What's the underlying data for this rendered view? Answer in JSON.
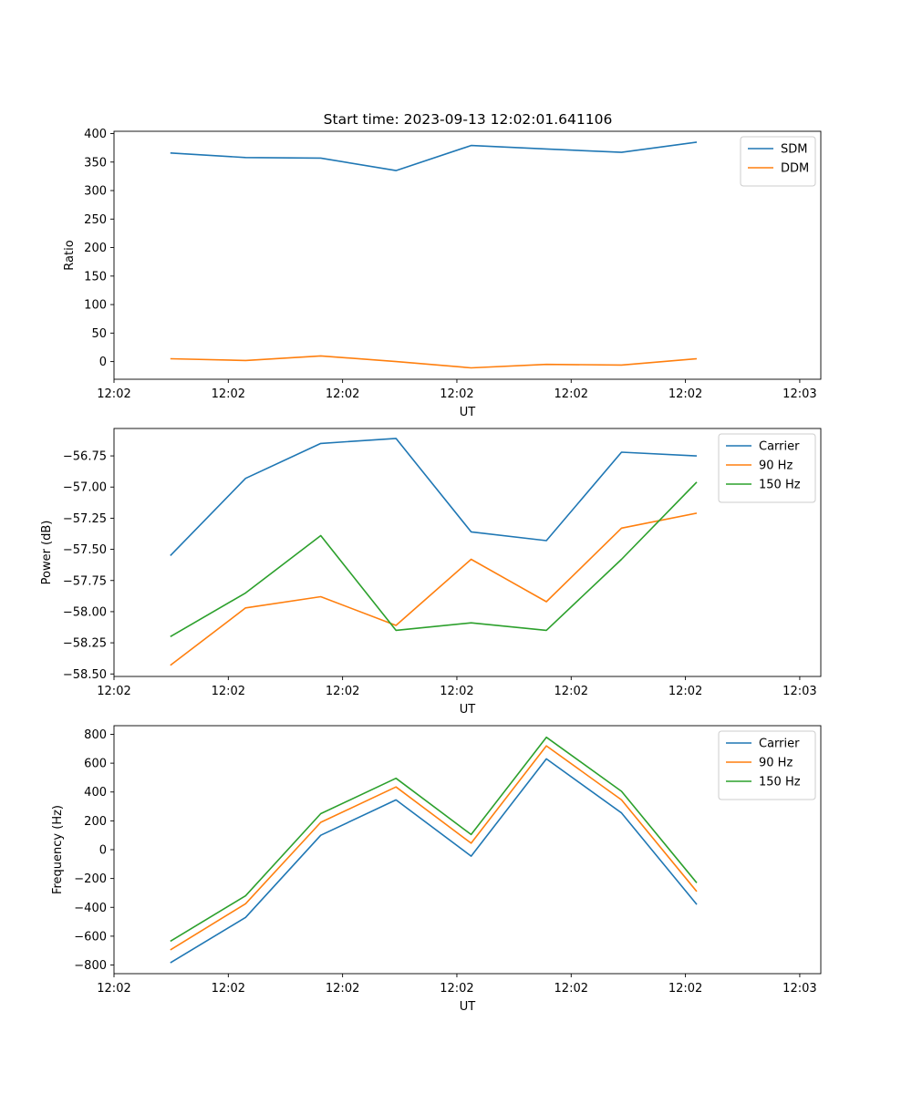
{
  "figure_title": "Start time: 2023-09-13 12:02:01.641106",
  "chart_data": [
    {
      "type": "line",
      "title": "Start time: 2023-09-13 12:02:01.641106",
      "xlabel": "UT",
      "ylabel": "Ratio",
      "x_index": [
        0,
        1,
        2,
        3,
        4,
        5,
        6,
        7
      ],
      "xlim": [
        -0.75,
        8.65
      ],
      "xticks": [
        -0.75,
        0.77,
        2.29,
        3.81,
        5.33,
        6.85,
        8.37
      ],
      "xtick_labels": [
        "12:02",
        "12:02",
        "12:02",
        "12:02",
        "12:02",
        "12:02",
        "12:03"
      ],
      "ylim": [
        -31,
        404
      ],
      "yticks": [
        0,
        50,
        100,
        150,
        200,
        250,
        300,
        350,
        400
      ],
      "ytick_labels": [
        "0",
        "50",
        "100",
        "150",
        "200",
        "250",
        "300",
        "350",
        "400"
      ],
      "legend_position": "top-right",
      "series": [
        {
          "name": "SDM",
          "color": "#1f77b4",
          "values": [
            366,
            358,
            357,
            335,
            379,
            373,
            367,
            385
          ]
        },
        {
          "name": "DDM",
          "color": "#ff7f0e",
          "values": [
            5,
            2,
            10,
            0,
            -11,
            -5,
            -6,
            5
          ]
        }
      ]
    },
    {
      "type": "line",
      "title": "",
      "xlabel": "UT",
      "ylabel": "Power (dB)",
      "x_index": [
        0,
        1,
        2,
        3,
        4,
        5,
        6,
        7
      ],
      "xlim": [
        -0.75,
        8.65
      ],
      "xticks": [
        -0.75,
        0.77,
        2.29,
        3.81,
        5.33,
        6.85,
        8.37
      ],
      "xtick_labels": [
        "12:02",
        "12:02",
        "12:02",
        "12:02",
        "12:02",
        "12:02",
        "12:03"
      ],
      "ylim": [
        -58.52,
        -56.53
      ],
      "yticks": [
        -58.5,
        -58.25,
        -58.0,
        -57.75,
        -57.5,
        -57.25,
        -57.0,
        -56.75
      ],
      "ytick_labels": [
        "−58.50",
        "−58.25",
        "−58.00",
        "−57.75",
        "−57.50",
        "−57.25",
        "−57.00",
        "−56.75"
      ],
      "legend_position": "top-right",
      "series": [
        {
          "name": "Carrier",
          "color": "#1f77b4",
          "values": [
            -57.55,
            -56.93,
            -56.65,
            -56.61,
            -57.36,
            -57.43,
            -56.72,
            -56.75
          ]
        },
        {
          "name": "90 Hz",
          "color": "#ff7f0e",
          "values": [
            -58.43,
            -57.97,
            -57.88,
            -58.11,
            -57.58,
            -57.92,
            -57.33,
            -57.21
          ]
        },
        {
          "name": "150 Hz",
          "color": "#2ca02c",
          "values": [
            -58.2,
            -57.85,
            -57.39,
            -58.15,
            -58.09,
            -58.15,
            -57.58,
            -56.96
          ]
        }
      ]
    },
    {
      "type": "line",
      "title": "",
      "xlabel": "UT",
      "ylabel": "Frequency (Hz)",
      "x_index": [
        0,
        1,
        2,
        3,
        4,
        5,
        6,
        7
      ],
      "xlim": [
        -0.75,
        8.65
      ],
      "xticks": [
        -0.75,
        0.77,
        2.29,
        3.81,
        5.33,
        6.85,
        8.37
      ],
      "xtick_labels": [
        "12:02",
        "12:02",
        "12:02",
        "12:02",
        "12:02",
        "12:02",
        "12:03"
      ],
      "ylim": [
        -860,
        860
      ],
      "yticks": [
        -800,
        -600,
        -400,
        -200,
        0,
        200,
        400,
        600,
        800
      ],
      "ytick_labels": [
        "−800",
        "−600",
        "−400",
        "−200",
        "0",
        "200",
        "400",
        "600",
        "800"
      ],
      "legend_position": "top-right",
      "series": [
        {
          "name": "Carrier",
          "color": "#1f77b4",
          "values": [
            -785,
            -470,
            100,
            345,
            -45,
            630,
            255,
            -380
          ]
        },
        {
          "name": "90 Hz",
          "color": "#ff7f0e",
          "values": [
            -695,
            -375,
            190,
            435,
            45,
            720,
            345,
            -290
          ]
        },
        {
          "name": "150 Hz",
          "color": "#2ca02c",
          "values": [
            -635,
            -320,
            250,
            495,
            105,
            780,
            405,
            -230
          ]
        }
      ]
    }
  ]
}
